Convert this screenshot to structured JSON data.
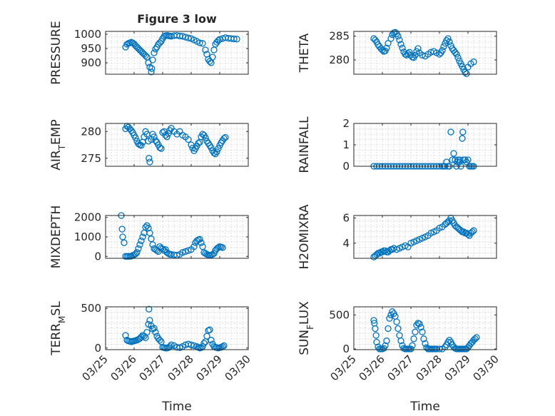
{
  "window": {
    "title": "Figure 3 low"
  },
  "marker_color": "#0072bd",
  "chart_data": [
    {
      "type": "scatter",
      "ylabel": "PRESSURE",
      "ylim": [
        860,
        1010
      ],
      "yticks": [
        900,
        950,
        1000
      ],
      "title": "Figure 3 low",
      "show_xticks": false,
      "xlabel": "",
      "grid": true,
      "marker": "circle",
      "x": [
        25.7,
        25.75,
        25.8,
        25.85,
        25.9,
        25.95,
        26.0,
        26.05,
        26.1,
        26.15,
        26.2,
        26.25,
        26.3,
        26.35,
        26.4,
        26.45,
        26.5,
        26.55,
        26.6,
        26.62,
        26.65,
        26.7,
        26.75,
        26.8,
        26.85,
        26.9,
        26.95,
        27.0,
        27.05,
        27.1,
        27.15,
        27.2,
        27.25,
        27.3,
        27.4,
        27.5,
        27.6,
        27.7,
        27.8,
        27.9,
        28.0,
        28.1,
        28.2,
        28.3,
        28.4,
        28.5,
        28.55,
        28.6,
        28.65,
        28.7,
        28.75,
        28.8,
        28.85,
        28.9,
        28.95,
        29.0,
        29.1,
        29.2,
        29.3,
        29.4,
        29.5,
        29.6
      ],
      "y": [
        955,
        965,
        968,
        970,
        972,
        970,
        966,
        960,
        955,
        950,
        945,
        940,
        935,
        930,
        925,
        920,
        900,
        885,
        868,
        880,
        910,
        935,
        948,
        955,
        965,
        970,
        975,
        985,
        992,
        995,
        996,
        995,
        994,
        993,
        995,
        996,
        994,
        993,
        990,
        987,
        985,
        980,
        975,
        970,
        968,
        945,
        930,
        912,
        905,
        900,
        920,
        945,
        965,
        972,
        978,
        982,
        985,
        988,
        986,
        985,
        984,
        983
      ]
    },
    {
      "type": "scatter",
      "ylabel": "THETA",
      "ylim": [
        277,
        286
      ],
      "yticks": [
        280,
        285
      ],
      "title": "",
      "show_xticks": false,
      "xlabel": "",
      "grid": true,
      "marker": "circle",
      "x": [
        25.7,
        25.75,
        25.8,
        25.85,
        25.9,
        25.95,
        26.0,
        26.05,
        26.1,
        26.15,
        26.2,
        26.3,
        26.35,
        26.4,
        26.45,
        26.5,
        26.55,
        26.6,
        26.65,
        26.7,
        26.75,
        26.8,
        26.85,
        26.9,
        26.95,
        27.0,
        27.05,
        27.1,
        27.15,
        27.2,
        27.25,
        27.3,
        27.4,
        27.5,
        27.6,
        27.7,
        27.8,
        27.9,
        28.0,
        28.05,
        28.1,
        28.15,
        28.2,
        28.25,
        28.3,
        28.35,
        28.4,
        28.45,
        28.5,
        28.55,
        28.6,
        28.65,
        28.7,
        28.75,
        28.8,
        28.85,
        28.9,
        28.95,
        29.0,
        29.1,
        29.2
      ],
      "y": [
        284.5,
        284.2,
        283.8,
        283.2,
        282.8,
        282.4,
        282.1,
        281.8,
        281.9,
        282.5,
        283.5,
        284.5,
        285.3,
        285.7,
        285.8,
        285.5,
        285.0,
        284.2,
        283.3,
        282.5,
        281.7,
        281.2,
        281.0,
        281.3,
        281.6,
        281.0,
        280.6,
        280.5,
        281.0,
        281.8,
        282.4,
        281.5,
        281.0,
        280.8,
        281.2,
        281.6,
        281.8,
        281.5,
        281.2,
        281.5,
        282.0,
        282.8,
        283.5,
        284.1,
        284.5,
        283.8,
        283.0,
        282.4,
        282.0,
        281.6,
        281.2,
        280.5,
        279.8,
        279.2,
        278.6,
        278.0,
        277.4,
        277.1,
        278.5,
        279.2,
        279.6
      ]
    },
    {
      "type": "scatter",
      "ylabel": "AIR_TEMP",
      "ylim": [
        273.5,
        281.5
      ],
      "yticks": [
        275,
        280
      ],
      "title": "",
      "show_xticks": false,
      "xlabel": "",
      "grid": true,
      "marker": "circle",
      "x": [
        25.7,
        25.75,
        25.8,
        25.85,
        25.9,
        25.95,
        26.0,
        26.05,
        26.1,
        26.15,
        26.2,
        26.25,
        26.3,
        26.35,
        26.4,
        26.45,
        26.5,
        26.52,
        26.55,
        26.6,
        26.65,
        26.7,
        26.75,
        26.8,
        26.85,
        26.9,
        26.95,
        27.0,
        27.05,
        27.1,
        27.15,
        27.2,
        27.25,
        27.3,
        27.4,
        27.5,
        27.6,
        27.7,
        27.8,
        27.9,
        28.0,
        28.05,
        28.1,
        28.15,
        28.2,
        28.25,
        28.3,
        28.35,
        28.4,
        28.45,
        28.5,
        28.55,
        28.6,
        28.65,
        28.7,
        28.75,
        28.8,
        28.85,
        28.9,
        28.95,
        29.0,
        29.05,
        29.1,
        29.15,
        29.2
      ],
      "y": [
        280.5,
        281.0,
        280.8,
        280.5,
        280.2,
        279.8,
        279.3,
        278.8,
        278.2,
        277.7,
        277.5,
        277.4,
        278.0,
        279.0,
        280.0,
        279.5,
        278.2,
        275.0,
        274.3,
        278.5,
        279.5,
        279.0,
        278.3,
        278.0,
        277.5,
        277.0,
        276.8,
        279.8,
        280.0,
        279.3,
        279.0,
        279.6,
        280.2,
        280.6,
        280.0,
        279.5,
        280.0,
        279.3,
        279.0,
        278.5,
        277.5,
        276.9,
        276.4,
        276.8,
        277.3,
        277.8,
        278.0,
        279.0,
        279.5,
        279.3,
        278.8,
        278.2,
        277.8,
        277.4,
        277.0,
        276.4,
        276.0,
        275.8,
        276.2,
        276.8,
        277.4,
        277.9,
        278.3,
        278.7,
        278.9
      ]
    },
    {
      "type": "scatter",
      "ylabel": "RAINFALL",
      "ylim": [
        0,
        2
      ],
      "yticks": [
        0,
        1,
        2
      ],
      "title": "",
      "show_xticks": false,
      "xlabel": "",
      "grid": true,
      "marker": "circle",
      "x": [
        25.7,
        25.8,
        25.9,
        26.0,
        26.1,
        26.2,
        26.3,
        26.4,
        26.5,
        26.6,
        26.7,
        26.8,
        26.9,
        27.0,
        27.1,
        27.2,
        27.3,
        27.4,
        27.5,
        27.6,
        27.7,
        27.8,
        27.9,
        28.0,
        28.1,
        28.15,
        28.2,
        28.25,
        28.3,
        28.35,
        28.4,
        28.45,
        28.5,
        28.55,
        28.6,
        28.62,
        28.65,
        28.7,
        28.72,
        28.75,
        28.8,
        28.82,
        28.85,
        28.9,
        28.95,
        29.0,
        29.05,
        29.1,
        29.15,
        29.2
      ],
      "y": [
        0,
        0,
        0,
        0,
        0,
        0,
        0,
        0,
        0,
        0,
        0,
        0,
        0,
        0,
        0,
        0,
        0,
        0,
        0,
        0,
        0,
        0,
        0,
        0,
        0,
        0,
        0,
        0.2,
        0,
        0,
        1.6,
        0.3,
        0.6,
        0.3,
        0,
        0.2,
        0.3,
        0.2,
        0.3,
        0,
        1.3,
        1.6,
        0.3,
        0.3,
        0.2,
        0.3,
        0,
        0,
        0,
        0
      ]
    },
    {
      "type": "scatter",
      "ylabel": "MIXDEPTH",
      "ylim": [
        -100,
        2100
      ],
      "yticks": [
        0,
        1000,
        2000
      ],
      "title": "",
      "show_xticks": false,
      "xlabel": "",
      "grid": true,
      "marker": "circle",
      "x": [
        25.55,
        25.58,
        25.6,
        25.65,
        25.7,
        25.75,
        25.8,
        25.85,
        25.9,
        25.95,
        26.0,
        26.05,
        26.1,
        26.15,
        26.2,
        26.25,
        26.3,
        26.35,
        26.4,
        26.45,
        26.5,
        26.55,
        26.6,
        26.65,
        26.7,
        26.75,
        26.8,
        26.85,
        26.9,
        26.95,
        27.0,
        27.05,
        27.1,
        27.15,
        27.2,
        27.25,
        27.3,
        27.4,
        27.5,
        27.6,
        27.7,
        27.8,
        27.9,
        28.0,
        28.1,
        28.15,
        28.2,
        28.25,
        28.3,
        28.35,
        28.4,
        28.45,
        28.5,
        28.55,
        28.6,
        28.65,
        28.7,
        28.75,
        28.8,
        28.85,
        28.9,
        28.95,
        29.0,
        29.05,
        29.1
      ],
      "y": [
        2100,
        1400,
        1000,
        700,
        0,
        0,
        0,
        0,
        10,
        50,
        80,
        120,
        200,
        400,
        600,
        800,
        1000,
        1200,
        1500,
        1580,
        1450,
        1200,
        900,
        600,
        400,
        350,
        300,
        250,
        500,
        420,
        380,
        300,
        350,
        200,
        150,
        100,
        100,
        80,
        60,
        100,
        200,
        250,
        300,
        350,
        500,
        700,
        800,
        850,
        880,
        700,
        500,
        200,
        150,
        100,
        80,
        60,
        70,
        100,
        150,
        300,
        400,
        450,
        500,
        480,
        450
      ]
    },
    {
      "type": "scatter",
      "ylabel": "H2OMIXRA",
      "ylim": [
        2.8,
        6.2
      ],
      "yticks": [
        4,
        6
      ],
      "title": "",
      "show_xticks": false,
      "xlabel": "",
      "grid": true,
      "marker": "circle",
      "x": [
        25.7,
        25.75,
        25.8,
        25.85,
        25.9,
        25.95,
        26.0,
        26.05,
        26.1,
        26.15,
        26.2,
        26.25,
        26.3,
        26.35,
        26.4,
        26.5,
        26.6,
        26.7,
        26.8,
        26.9,
        27.0,
        27.1,
        27.2,
        27.3,
        27.4,
        27.5,
        27.6,
        27.7,
        27.8,
        27.9,
        28.0,
        28.1,
        28.2,
        28.25,
        28.3,
        28.35,
        28.4,
        28.45,
        28.5,
        28.55,
        28.6,
        28.65,
        28.7,
        28.75,
        28.8,
        28.85,
        28.9,
        28.95,
        29.0,
        29.05,
        29.1,
        29.15,
        29.2
      ],
      "y": [
        2.9,
        3.0,
        3.1,
        3.2,
        3.2,
        3.3,
        3.3,
        3.4,
        3.4,
        3.3,
        3.3,
        3.4,
        3.5,
        3.5,
        3.6,
        3.5,
        3.6,
        3.7,
        3.8,
        3.7,
        4.0,
        4.1,
        4.2,
        4.3,
        4.4,
        4.5,
        4.6,
        4.8,
        4.9,
        5.0,
        5.2,
        5.3,
        5.5,
        5.6,
        5.7,
        5.8,
        6.0,
        5.8,
        5.6,
        5.4,
        5.3,
        5.2,
        5.1,
        5.0,
        4.9,
        4.9,
        4.8,
        4.8,
        4.7,
        4.6,
        4.8,
        4.9,
        5.0
      ]
    },
    {
      "type": "scatter",
      "ylabel": "TERR_MSL",
      "ylim": [
        -20,
        520
      ],
      "yticks": [
        0,
        500
      ],
      "title": "",
      "show_xticks": true,
      "xlabel": "Time",
      "grid": true,
      "marker": "circle",
      "x": [
        25.7,
        25.75,
        25.8,
        25.85,
        25.9,
        25.95,
        26.0,
        26.05,
        26.1,
        26.15,
        26.2,
        26.25,
        26.3,
        26.35,
        26.4,
        26.45,
        26.5,
        26.52,
        26.55,
        26.6,
        26.65,
        26.7,
        26.75,
        26.8,
        26.85,
        26.9,
        26.95,
        27.0,
        27.05,
        27.1,
        27.15,
        27.2,
        27.25,
        27.3,
        27.4,
        27.5,
        27.6,
        27.7,
        27.8,
        27.9,
        28.0,
        28.1,
        28.2,
        28.25,
        28.3,
        28.35,
        28.4,
        28.45,
        28.5,
        28.55,
        28.6,
        28.65,
        28.7,
        28.75,
        28.8,
        28.85,
        28.9,
        28.95,
        29.0,
        29.05,
        29.1,
        29.15
      ],
      "y": [
        160,
        100,
        90,
        85,
        80,
        85,
        90,
        95,
        100,
        110,
        120,
        140,
        160,
        150,
        130,
        200,
        300,
        490,
        350,
        280,
        240,
        250,
        200,
        150,
        120,
        100,
        80,
        10,
        5,
        0,
        0,
        5,
        20,
        40,
        30,
        10,
        5,
        20,
        40,
        50,
        40,
        30,
        20,
        10,
        0,
        5,
        20,
        60,
        80,
        150,
        220,
        230,
        100,
        50,
        20,
        10,
        5,
        0,
        5,
        10,
        20,
        30
      ]
    },
    {
      "type": "scatter",
      "ylabel": "SUN_FLUX",
      "ylim": [
        -10,
        620
      ],
      "yticks": [
        0,
        500
      ],
      "title": "",
      "show_xticks": true,
      "xlabel": "Time",
      "grid": true,
      "marker": "circle",
      "x": [
        25.7,
        25.72,
        25.75,
        25.78,
        25.8,
        25.85,
        25.9,
        25.95,
        26.0,
        26.05,
        26.1,
        26.15,
        26.2,
        26.25,
        26.3,
        26.35,
        26.4,
        26.45,
        26.5,
        26.55,
        26.6,
        26.65,
        26.7,
        26.75,
        26.8,
        26.85,
        26.9,
        26.95,
        27.0,
        27.05,
        27.1,
        27.15,
        27.2,
        27.25,
        27.3,
        27.35,
        27.4,
        27.45,
        27.5,
        27.55,
        27.6,
        27.65,
        27.7,
        27.75,
        27.8,
        27.85,
        27.9,
        28.0,
        28.1,
        28.2,
        28.25,
        28.3,
        28.35,
        28.4,
        28.45,
        28.5,
        28.55,
        28.6,
        28.65,
        28.7,
        28.75,
        28.8,
        28.85,
        28.9,
        28.95,
        29.0,
        29.05,
        29.1,
        29.15,
        29.2,
        29.25,
        29.3
      ],
      "y": [
        420,
        380,
        300,
        200,
        100,
        30,
        0,
        0,
        0,
        10,
        50,
        120,
        300,
        450,
        500,
        550,
        520,
        480,
        400,
        300,
        200,
        120,
        50,
        10,
        0,
        0,
        0,
        0,
        0,
        50,
        150,
        250,
        350,
        380,
        370,
        320,
        250,
        150,
        80,
        20,
        0,
        0,
        0,
        0,
        0,
        0,
        0,
        0,
        0,
        30,
        60,
        100,
        130,
        100,
        60,
        30,
        10,
        0,
        0,
        0,
        0,
        0,
        0,
        0,
        0,
        20,
        50,
        80,
        100,
        130,
        150,
        170
      ]
    }
  ],
  "shared_xaxis": {
    "xlim": [
      25.0,
      30.0
    ],
    "tick_values": [
      25,
      26,
      27,
      28,
      29,
      30
    ],
    "tick_labels": [
      "03/25",
      "03/26",
      "03/27",
      "03/28",
      "03/29",
      "03/30"
    ]
  }
}
